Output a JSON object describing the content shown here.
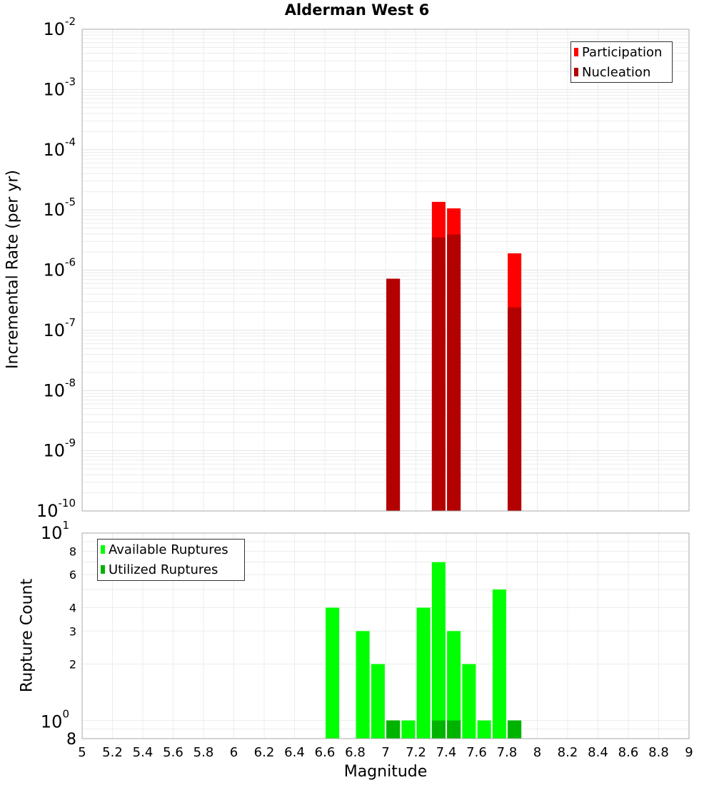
{
  "chart_data": [
    {
      "type": "bar",
      "title": "Alderman West 6",
      "xlabel": "Magnitude",
      "ylabel": "Incremental Rate (per yr)",
      "yscale": "log",
      "ylim": [
        1e-10,
        0.01
      ],
      "xlim": [
        5,
        9
      ],
      "grid": true,
      "legend_position": "top-right",
      "y_ticks": [
        {
          "base": "10",
          "exp": "-2",
          "value": -2
        },
        {
          "base": "10",
          "exp": "-3",
          "value": -3
        },
        {
          "base": "10",
          "exp": "-4",
          "value": -4
        },
        {
          "base": "10",
          "exp": "-5",
          "value": -5
        },
        {
          "base": "10",
          "exp": "-6",
          "value": -6
        },
        {
          "base": "10",
          "exp": "-7",
          "value": -7
        },
        {
          "base": "10",
          "exp": "-8",
          "value": -8
        },
        {
          "base": "10",
          "exp": "-9",
          "value": -9
        },
        {
          "base": "10",
          "exp": "-10",
          "value": -10
        }
      ],
      "categories": [
        7.05,
        7.35,
        7.45,
        7.85
      ],
      "series": [
        {
          "name": "Participation",
          "color": "#ff0000",
          "values": [
            7.2e-07,
            1.36e-05,
            1.06e-05,
            1.9e-06
          ]
        },
        {
          "name": "Nucleation",
          "color": "#b30000",
          "values": [
            7.2e-07,
            3.5e-06,
            3.9e-06,
            2.4e-07
          ]
        }
      ]
    },
    {
      "type": "bar",
      "title": "",
      "xlabel": "Magnitude",
      "ylabel": "Rupture Count",
      "yscale": "log",
      "ylim": [
        0.8,
        10
      ],
      "xlim": [
        5,
        9
      ],
      "grid": true,
      "legend_position": "top-left",
      "y_ticks": [
        {
          "label": "8",
          "value": 8,
          "style": "minor"
        },
        {
          "label": "6",
          "value": 6,
          "style": "minor"
        },
        {
          "label": "4",
          "value": 4,
          "style": "minor"
        },
        {
          "label": "3",
          "value": 3,
          "style": "minor"
        },
        {
          "label": "2",
          "value": 2,
          "style": "minor"
        }
      ],
      "y_major_ticks": [
        {
          "base": "10",
          "exp": "1",
          "value": 10
        },
        {
          "base": "10",
          "exp": "0",
          "value": 1
        }
      ],
      "y_bottom_label": "8",
      "x_ticks": [
        "5",
        "5.2",
        "5.4",
        "5.6",
        "5.8",
        "6",
        "6.2",
        "6.4",
        "6.6",
        "6.8",
        "7",
        "7.2",
        "7.4",
        "7.6",
        "7.8",
        "8",
        "8.2",
        "8.4",
        "8.6",
        "8.8",
        "9"
      ],
      "categories": [
        6.65,
        6.85,
        6.95,
        7.05,
        7.15,
        7.25,
        7.35,
        7.45,
        7.55,
        7.65,
        7.75,
        7.85
      ],
      "series": [
        {
          "name": "Available Ruptures",
          "color": "#00ff00",
          "values": [
            4,
            3,
            2,
            1,
            1,
            4,
            7,
            3,
            2,
            1,
            5,
            1
          ]
        },
        {
          "name": "Utilized Ruptures",
          "color": "#00b300",
          "values": [
            0,
            0,
            0,
            1,
            0,
            0,
            1,
            1,
            0,
            0,
            0,
            1
          ]
        }
      ]
    }
  ]
}
